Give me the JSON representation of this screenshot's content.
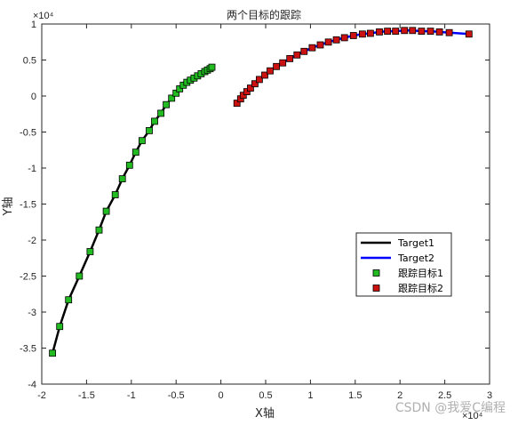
{
  "chart_data": {
    "type": "line",
    "title": "两个目标的跟踪",
    "xlabel": "X轴",
    "ylabel": "Y轴",
    "x_exponent": "×10⁴",
    "y_exponent": "×10⁴",
    "xlim": [
      -2,
      3
    ],
    "ylim": [
      -4,
      1
    ],
    "scale": 10000,
    "xticks": [
      -2,
      -1.5,
      -1,
      -0.5,
      0,
      0.5,
      1,
      1.5,
      2,
      2.5,
      3
    ],
    "yticks": [
      -4,
      -3.5,
      -3,
      -2.5,
      -2,
      -1.5,
      -1,
      -0.5,
      0,
      0.5,
      1
    ],
    "grid": false,
    "legend_position": "lower-right",
    "series": [
      {
        "name": "Target1",
        "kind": "line",
        "color": "#000000",
        "x": [
          -1.88,
          -1.8,
          -1.7,
          -1.58,
          -1.46,
          -1.36,
          -1.28,
          -1.18,
          -1.1,
          -1.02,
          -0.95,
          -0.88,
          -0.8,
          -0.74,
          -0.67,
          -0.61,
          -0.55,
          -0.5,
          -0.46,
          -0.42,
          -0.38,
          -0.34,
          -0.3,
          -0.26,
          -0.22,
          -0.18,
          -0.15,
          -0.12,
          -0.1
        ],
        "y": [
          -3.57,
          -3.2,
          -2.83,
          -2.5,
          -2.16,
          -1.86,
          -1.6,
          -1.37,
          -1.15,
          -0.96,
          -0.78,
          -0.62,
          -0.48,
          -0.35,
          -0.24,
          -0.12,
          -0.03,
          0.04,
          0.1,
          0.15,
          0.19,
          0.22,
          0.25,
          0.28,
          0.31,
          0.34,
          0.36,
          0.38,
          0.4
        ]
      },
      {
        "name": "Target2",
        "kind": "line",
        "color": "#0000ff",
        "x": [
          0.18,
          0.22,
          0.25,
          0.29,
          0.33,
          0.38,
          0.43,
          0.49,
          0.55,
          0.62,
          0.69,
          0.77,
          0.85,
          0.93,
          1.02,
          1.11,
          1.2,
          1.29,
          1.38,
          1.48,
          1.58,
          1.67,
          1.77,
          1.86,
          1.95,
          2.05,
          2.14,
          2.24,
          2.34,
          2.44,
          2.55,
          2.77
        ],
        "y": [
          -0.1,
          -0.04,
          0.01,
          0.06,
          0.11,
          0.17,
          0.23,
          0.29,
          0.35,
          0.41,
          0.46,
          0.52,
          0.57,
          0.62,
          0.67,
          0.71,
          0.75,
          0.78,
          0.81,
          0.84,
          0.86,
          0.87,
          0.89,
          0.9,
          0.9,
          0.91,
          0.91,
          0.9,
          0.9,
          0.89,
          0.88,
          0.86
        ]
      },
      {
        "name": "跟踪目标1",
        "kind": "marker",
        "color": "#22bb22",
        "x": [
          -1.88,
          -1.8,
          -1.7,
          -1.58,
          -1.46,
          -1.36,
          -1.28,
          -1.18,
          -1.1,
          -1.02,
          -0.95,
          -0.88,
          -0.8,
          -0.74,
          -0.67,
          -0.61,
          -0.55,
          -0.5,
          -0.46,
          -0.42,
          -0.38,
          -0.34,
          -0.3,
          -0.26,
          -0.22,
          -0.18,
          -0.15,
          -0.12,
          -0.1
        ],
        "y": [
          -3.57,
          -3.2,
          -2.83,
          -2.5,
          -2.16,
          -1.86,
          -1.6,
          -1.37,
          -1.15,
          -0.96,
          -0.78,
          -0.62,
          -0.48,
          -0.35,
          -0.24,
          -0.12,
          -0.03,
          0.04,
          0.1,
          0.15,
          0.19,
          0.22,
          0.25,
          0.28,
          0.31,
          0.34,
          0.36,
          0.38,
          0.4
        ]
      },
      {
        "name": "跟踪目标2",
        "kind": "marker",
        "color": "#cc1111",
        "x": [
          0.18,
          0.22,
          0.25,
          0.29,
          0.33,
          0.38,
          0.43,
          0.49,
          0.55,
          0.62,
          0.69,
          0.77,
          0.85,
          0.93,
          1.02,
          1.11,
          1.2,
          1.29,
          1.38,
          1.48,
          1.58,
          1.67,
          1.77,
          1.86,
          1.95,
          2.05,
          2.14,
          2.24,
          2.34,
          2.44,
          2.55,
          2.77
        ],
        "y": [
          -0.1,
          -0.04,
          0.01,
          0.06,
          0.11,
          0.17,
          0.23,
          0.29,
          0.35,
          0.41,
          0.46,
          0.52,
          0.57,
          0.62,
          0.67,
          0.71,
          0.75,
          0.78,
          0.81,
          0.84,
          0.86,
          0.87,
          0.89,
          0.9,
          0.9,
          0.91,
          0.91,
          0.9,
          0.9,
          0.89,
          0.88,
          0.86
        ]
      }
    ]
  },
  "watermark": "CSDN @我爱C编程"
}
